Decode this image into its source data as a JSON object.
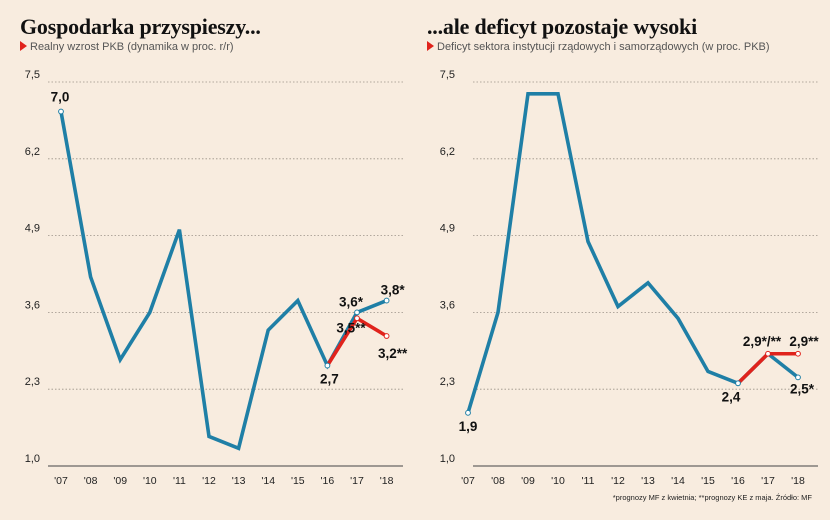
{
  "chart_data": [
    {
      "type": "line",
      "title": "Gospodarka przyspieszy...",
      "subtitle": "Realny wzrost PKB (dynamika w proc. r/r)",
      "categories": [
        "'07",
        "'08",
        "'09",
        "'10",
        "'11",
        "'12",
        "'13",
        "'14",
        "'15",
        "'16",
        "'17",
        "'18"
      ],
      "yticks": [
        "7,5",
        "6,2",
        "4,9",
        "3,6",
        "2,3",
        "1,0"
      ],
      "ylim": [
        1.0,
        7.5
      ],
      "grid": true,
      "colors": {
        "main": "#1f7fa6",
        "forecast_red": "#e0231c"
      },
      "series": [
        {
          "values": [
            7.0,
            4.2,
            2.8,
            3.6,
            5.0,
            1.5,
            1.3,
            3.3,
            3.8,
            2.7,
            3.6,
            3.8
          ],
          "color": "#1f7fa6"
        },
        {
          "values": [
            null,
            null,
            null,
            null,
            null,
            null,
            null,
            null,
            null,
            2.7,
            3.5,
            3.2
          ],
          "color": "#e0231c"
        }
      ],
      "labels": [
        {
          "series": 0,
          "index": 0,
          "text": "7,0"
        },
        {
          "series": 0,
          "index": 9,
          "text": "2,7"
        },
        {
          "series": 0,
          "index": 10,
          "text": "3,6*"
        },
        {
          "series": 0,
          "index": 11,
          "text": "3,8*"
        },
        {
          "series": 1,
          "index": 10,
          "text": "3,5**"
        },
        {
          "series": 1,
          "index": 11,
          "text": "3,2**"
        }
      ]
    },
    {
      "type": "line",
      "title": "...ale deficyt pozostaje wysoki",
      "subtitle": "Deficyt sektora instytucji rządowych i samorządowych (w proc. PKB)",
      "categories": [
        "'07",
        "'08",
        "'09",
        "'10",
        "'11",
        "'12",
        "'13",
        "'14",
        "'15",
        "'16",
        "'17",
        "'18"
      ],
      "yticks": [
        "7,5",
        "6,2",
        "4,9",
        "3,6",
        "2,3",
        "1,0"
      ],
      "ylim": [
        1.0,
        7.5
      ],
      "grid": true,
      "colors": {
        "main": "#1f7fa6",
        "forecast_red": "#e0231c"
      },
      "series": [
        {
          "values": [
            1.9,
            3.6,
            7.3,
            7.3,
            4.8,
            3.7,
            4.1,
            3.5,
            2.6,
            2.4,
            2.9,
            2.5
          ],
          "color": "#1f7fa6"
        },
        {
          "values": [
            null,
            null,
            null,
            null,
            null,
            null,
            null,
            null,
            null,
            2.4,
            2.9,
            2.9
          ],
          "color": "#e0231c"
        }
      ],
      "labels": [
        {
          "series": 0,
          "index": 0,
          "text": "1,9"
        },
        {
          "series": 0,
          "index": 9,
          "text": "2,4"
        },
        {
          "series": 1,
          "index": 10,
          "text": "2,9*/**"
        },
        {
          "series": 1,
          "index": 11,
          "text": "2,9**"
        },
        {
          "series": 0,
          "index": 11,
          "text": "2,5*"
        }
      ]
    }
  ],
  "footnote": "*prognozy MF z kwietnia; **prognozy KE z maja. Źródło: MF"
}
